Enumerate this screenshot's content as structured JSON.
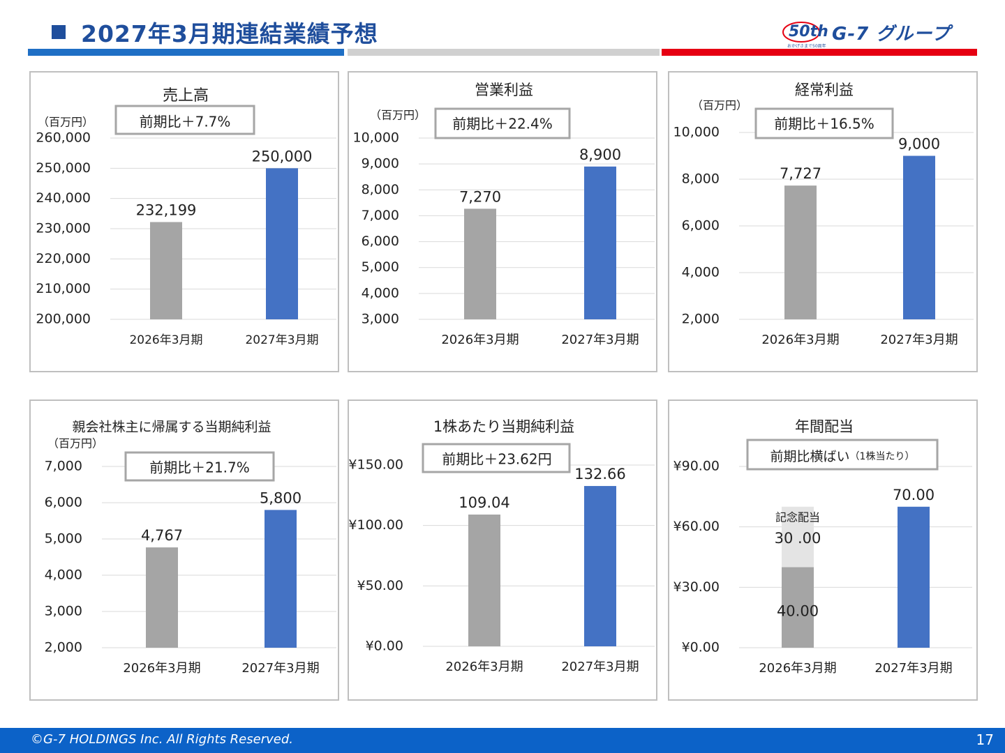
{
  "header": {
    "title": "2027年3月期連結業績予想",
    "brand_name": "G-7 グループ",
    "logo_mark": "50th",
    "logo_sub": "おかげさまで50周年"
  },
  "colors": {
    "accent_blue": "#1f4e9c",
    "strip": [
      "#1f6fc5",
      "#d0d0d0",
      "#e60012"
    ],
    "bar_prior": "#a5a5a5",
    "bar_current": "#4472c4",
    "bar_commemorative": "#e4e4e4",
    "footer": "#0c62c8"
  },
  "footer": {
    "copyright": "©G-7 HOLDINGS Inc. All Rights Reserved.",
    "page_number": "17"
  },
  "chart_data": [
    {
      "type": "bar",
      "title": "売上高",
      "unit": "（百万円）",
      "comparison": "前期比＋7.7%",
      "categories": [
        "2026年3月期",
        "2027年3月期"
      ],
      "values": [
        232199,
        250000
      ],
      "value_labels": [
        "232,199",
        "250,000"
      ],
      "ylim": [
        200000,
        260000
      ],
      "yticks": [
        200000,
        210000,
        220000,
        230000,
        240000,
        250000,
        260000
      ],
      "ytick_labels": [
        "200,000",
        "210,000",
        "220,000",
        "230,000",
        "240,000",
        "250,000",
        "260,000"
      ],
      "grid": true
    },
    {
      "type": "bar",
      "title": "営業利益",
      "unit": "（百万円）",
      "comparison": "前期比＋22.4%",
      "categories": [
        "2026年3月期",
        "2027年3月期"
      ],
      "values": [
        7270,
        8900
      ],
      "value_labels": [
        "7,270",
        "8,900"
      ],
      "ylim": [
        3000,
        10000
      ],
      "yticks": [
        3000,
        4000,
        5000,
        6000,
        7000,
        8000,
        9000,
        10000
      ],
      "ytick_labels": [
        "3,000",
        "4,000",
        "5,000",
        "6,000",
        "7,000",
        "8,000",
        "9,000",
        "10,000"
      ],
      "grid": true
    },
    {
      "type": "bar",
      "title": "経常利益",
      "unit": "（百万円）",
      "comparison": "前期比＋16.5%",
      "categories": [
        "2026年3月期",
        "2027年3月期"
      ],
      "values": [
        7727,
        9000
      ],
      "value_labels": [
        "7,727",
        "9,000"
      ],
      "ylim": [
        2000,
        10000
      ],
      "yticks": [
        2000,
        4000,
        6000,
        8000,
        10000
      ],
      "ytick_labels": [
        "2,000",
        "4,000",
        "6,000",
        "8,000",
        "10,000"
      ],
      "grid": true
    },
    {
      "type": "bar",
      "title": "親会社株主に帰属する当期純利益",
      "unit": "（百万円）",
      "comparison": "前期比＋21.7%",
      "categories": [
        "2026年3月期",
        "2027年3月期"
      ],
      "values": [
        4767,
        5800
      ],
      "value_labels": [
        "4,767",
        "5,800"
      ],
      "ylim": [
        2000,
        7000
      ],
      "yticks": [
        2000,
        3000,
        4000,
        5000,
        6000,
        7000
      ],
      "ytick_labels": [
        "2,000",
        "3,000",
        "4,000",
        "5,000",
        "6,000",
        "7,000"
      ],
      "grid": true
    },
    {
      "type": "bar",
      "title": "1株あたり当期純利益",
      "comparison": "前期比＋23.62円",
      "categories": [
        "2026年3月期",
        "2027年3月期"
      ],
      "values": [
        109.04,
        132.66
      ],
      "value_labels": [
        "109.04",
        "132.66"
      ],
      "ylim": [
        0,
        150
      ],
      "yticks": [
        0,
        50,
        100,
        150
      ],
      "ytick_labels": [
        "¥0.00",
        "¥50.00",
        "¥100.00",
        "¥150.00"
      ],
      "grid": true
    },
    {
      "type": "bar",
      "title": "年間配当",
      "comparison": "前期比横ばい",
      "comparison_note": "（1株当たり）",
      "categories": [
        "2026年3月期",
        "2027年3月期"
      ],
      "values": [
        40,
        70
      ],
      "value_labels": [
        "40.00",
        "70.00"
      ],
      "stack_name": "記念配当",
      "stack_values": [
        30,
        0
      ],
      "stack_labels": [
        "30 .00",
        ""
      ],
      "ylim": [
        0,
        90
      ],
      "yticks": [
        0,
        30,
        60,
        90
      ],
      "ytick_labels": [
        "¥0.00",
        "¥30.00",
        "¥60.00",
        "¥90.00"
      ],
      "grid": true
    }
  ]
}
